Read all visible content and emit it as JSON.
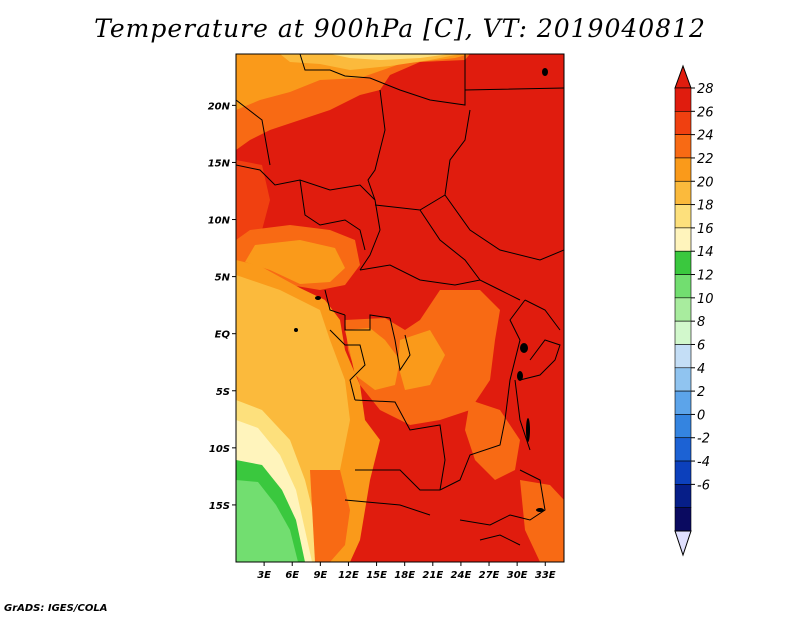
{
  "title": "Temperature at 900hPa [C], VT: 2019040812",
  "footer": "GrADS: IGES/COLA",
  "lat_labels": [
    "20N",
    "15N",
    "10N",
    "5N",
    "EQ",
    "5S",
    "10S",
    "15S"
  ],
  "lat_values": [
    20,
    15,
    10,
    5,
    0,
    -5,
    -10,
    -15
  ],
  "lon_labels": [
    "3E",
    "6E",
    "9E",
    "12E",
    "15E",
    "18E",
    "21E",
    "24E",
    "27E",
    "30E",
    "33E"
  ],
  "lon_values": [
    3,
    6,
    9,
    12,
    15,
    18,
    21,
    24,
    27,
    30,
    33
  ],
  "lon_range": [
    0,
    35
  ],
  "lat_range": [
    -20,
    24.5
  ],
  "colorbar": {
    "labels": [
      "28",
      "26",
      "24",
      "22",
      "20",
      "18",
      "16",
      "14",
      "12",
      "10",
      "8",
      "6",
      "4",
      "2",
      "0",
      "-2",
      "-4",
      "-6"
    ],
    "colors_top_to_bottom": [
      "#e01c0e",
      "#f04010",
      "#f86a14",
      "#fa9a1a",
      "#fbba3c",
      "#fde07c",
      "#fff4bc",
      "#3ac83e",
      "#72de70",
      "#a8ec9e",
      "#d2f8cc",
      "#c4def6",
      "#90c4f0",
      "#5ca4ea",
      "#3484e0",
      "#1c62d4",
      "#0c40bc",
      "#061e88",
      "#0a0a60"
    ],
    "under_color": "#e0e0ff",
    "over_color": "#e01c0e"
  }
}
